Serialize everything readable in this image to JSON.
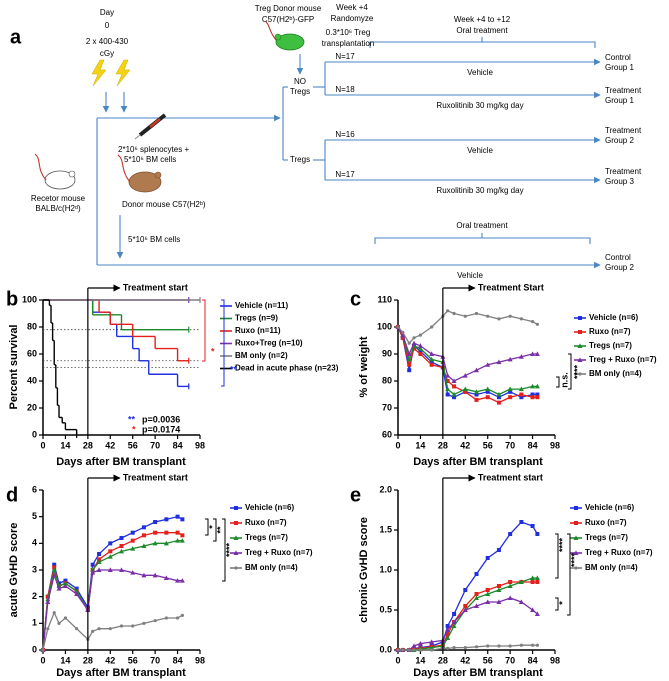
{
  "diagram": {
    "panel": "a",
    "texts": [
      "Day",
      "0",
      "2 x 400-430",
      "cGy",
      "Treg Donor mouse",
      "C57(H2ᵇ)-GFP",
      "Week +4",
      "Randomyze",
      "0.3*10⁶ Treg",
      "transplantation",
      "Week +4 to +12",
      "Oral treatment",
      "NO",
      "Tregs",
      "N=17",
      "Vehicle",
      "Control",
      "Group 1",
      "N=18",
      "Ruxolitinib 30 mg/kg day",
      "Treatment",
      "Group 1",
      "Tregs",
      "N=16",
      "Vehicle",
      "Treatment",
      "Group 2",
      "N=17",
      "Ruxolitinib 30 mg/kg day",
      "Treatment",
      "Group 3",
      "2*10⁶ splenocytes +",
      "5*10⁶ BM cells",
      "Recetor mouse",
      "BALB/c(H2ᵈ)",
      "Donor mouse C57(H2ᵇ)",
      "5*10⁶ BM cells",
      "Oral treatment",
      "Control",
      "Group 2",
      "Vehicle"
    ]
  },
  "chart_data": [
    {
      "type": "line",
      "step": true,
      "panel": "b",
      "ylabel": "Percent survival",
      "xlabel": "Days after BM transplant",
      "xlim": [
        0,
        98
      ],
      "xticks": [
        0,
        14,
        28,
        42,
        56,
        70,
        84,
        98
      ],
      "ylim": [
        0,
        100
      ],
      "yticks": [
        0,
        20,
        40,
        60,
        80,
        100
      ],
      "hlines": [
        78,
        55,
        50
      ],
      "treatment_start": {
        "x": 28,
        "label": "Treatment start"
      },
      "series": [
        {
          "name": "Vehicle (n=11)",
          "color": "#1f2fe0",
          "x": [
            0,
            31,
            42,
            46,
            56,
            60,
            66,
            84,
            91
          ],
          "values": [
            100,
            91,
            82,
            73,
            64,
            55,
            45,
            36,
            36
          ]
        },
        {
          "name": "Tregs (n=9)",
          "color": "#1c8a2a",
          "x": [
            0,
            31,
            49,
            91
          ],
          "values": [
            100,
            89,
            78,
            78
          ]
        },
        {
          "name": "Ruxo (n=11)",
          "color": "#e3201c",
          "x": [
            0,
            35,
            42,
            56,
            70,
            84,
            91
          ],
          "values": [
            100,
            91,
            82,
            73,
            64,
            55,
            55
          ]
        },
        {
          "name": "Ruxo+Treg (n=10)",
          "color": "#7a2fa8",
          "x": [
            0,
            91
          ],
          "values": [
            100,
            100
          ]
        },
        {
          "name": "BM only (n=2)",
          "color": "#7f7f7f",
          "x": [
            0,
            98
          ],
          "values": [
            100,
            100
          ]
        },
        {
          "name": "Dead in acute phase (n=23)",
          "color": "#000000",
          "x": [
            0,
            4,
            5,
            6,
            7,
            8,
            9,
            10,
            12,
            14,
            21
          ],
          "values": [
            100,
            96,
            83,
            70,
            52,
            35,
            22,
            13,
            9,
            4,
            0
          ]
        }
      ],
      "annotations": [
        {
          "text": "*",
          "color": "#e3201c"
        },
        {
          "text": "**",
          "color": "#1f2fe0"
        },
        {
          "text": "**",
          "color": "#1f2fe0"
        },
        {
          "text": "p=0.0036"
        },
        {
          "text": "*",
          "color": "#e3201c"
        },
        {
          "text": "p=0.0174"
        }
      ]
    },
    {
      "type": "line",
      "panel": "c",
      "ylabel": "% of weight",
      "xlabel": "Days after BM transplant",
      "xlim": [
        0,
        98
      ],
      "xticks": [
        0,
        14,
        28,
        42,
        56,
        70,
        84,
        98
      ],
      "ylim": [
        60,
        110
      ],
      "yticks": [
        60,
        70,
        80,
        90,
        100,
        110
      ],
      "x": [
        0,
        3,
        7,
        10,
        14,
        21,
        28,
        31,
        35,
        42,
        49,
        56,
        63,
        70,
        77,
        84,
        87
      ],
      "treatment_start": {
        "x": 28,
        "label": "Treatment Start"
      },
      "series": [
        {
          "name": "Vehicle (n=6)",
          "color": "#1f2fe0",
          "marker": "square",
          "values": [
            100,
            96,
            84,
            93,
            91,
            87,
            85,
            75,
            74,
            76,
            75,
            76,
            74,
            76,
            74,
            75,
            75
          ]
        },
        {
          "name": "Ruxo (n=7)",
          "color": "#e3201c",
          "marker": "square",
          "values": [
            100,
            96,
            86,
            92,
            90,
            86,
            85,
            80,
            78,
            76,
            73,
            74,
            72,
            74,
            75,
            74,
            74
          ]
        },
        {
          "name": "Tregs (n=7)",
          "color": "#1c8a2a",
          "marker": "triangle",
          "values": [
            100,
            97,
            88,
            93,
            92,
            88,
            87,
            77,
            75,
            77,
            76,
            77,
            75,
            77,
            77,
            78,
            78
          ]
        },
        {
          "name": "Treg + Ruxo (n=7)",
          "color": "#7a2fa8",
          "marker": "triangle",
          "values": [
            100,
            97,
            90,
            94,
            93,
            90,
            89,
            82,
            80,
            82,
            84,
            86,
            87,
            88,
            89,
            90,
            90
          ]
        },
        {
          "name": "BM only (n=4)",
          "color": "#7f7f7f",
          "marker": "circle",
          "values": [
            100,
            98,
            94,
            96,
            97,
            100,
            104,
            106,
            105,
            104,
            105,
            104,
            103,
            104,
            103,
            102,
            101
          ]
        }
      ],
      "annotations": [
        {
          "text": "n.s."
        },
        {
          "text": "****"
        }
      ]
    },
    {
      "type": "line",
      "panel": "d",
      "ylabel": "acute GvHD score",
      "xlabel": "Days after BM transplant",
      "xlim": [
        0,
        98
      ],
      "xticks": [
        0,
        14,
        28,
        42,
        56,
        70,
        84,
        98
      ],
      "ylim": [
        0,
        6
      ],
      "yticks": [
        0,
        1,
        2,
        3,
        4,
        5,
        6
      ],
      "x": [
        0,
        3,
        7,
        10,
        14,
        21,
        28,
        31,
        35,
        42,
        49,
        56,
        63,
        70,
        77,
        84,
        87
      ],
      "treatment_start": {
        "x": 28,
        "label": "Treatment start"
      },
      "series": [
        {
          "name": "Vehicle (n=6)",
          "color": "#1f2fe0",
          "marker": "square",
          "values": [
            0,
            2,
            3.2,
            2.5,
            2.6,
            2.3,
            1.6,
            3.2,
            3.6,
            4.0,
            4.2,
            4.4,
            4.6,
            4.8,
            4.9,
            5.0,
            4.9
          ]
        },
        {
          "name": "Ruxo (n=7)",
          "color": "#e3201c",
          "marker": "square",
          "values": [
            0,
            2,
            3.1,
            2.4,
            2.5,
            2.2,
            1.5,
            3.0,
            3.4,
            3.7,
            3.9,
            4.1,
            4.3,
            4.4,
            4.4,
            4.4,
            4.3
          ]
        },
        {
          "name": "Tregs (n=7)",
          "color": "#1c8a2a",
          "marker": "triangle",
          "values": [
            0,
            1.9,
            3.0,
            2.4,
            2.5,
            2.2,
            1.5,
            3.0,
            3.3,
            3.5,
            3.7,
            3.8,
            3.9,
            4.0,
            4.0,
            4.1,
            4.1
          ]
        },
        {
          "name": "Treg + Ruxo (n=7)",
          "color": "#7a2fa8",
          "marker": "triangle",
          "values": [
            0,
            1.8,
            2.8,
            2.3,
            2.4,
            2.1,
            1.5,
            2.9,
            3.0,
            3.0,
            3.0,
            2.9,
            2.8,
            2.8,
            2.7,
            2.6,
            2.6
          ]
        },
        {
          "name": "BM only (n=4)",
          "color": "#7f7f7f",
          "marker": "circle",
          "values": [
            0,
            0.8,
            1.4,
            1.0,
            1.2,
            0.8,
            0.4,
            0.7,
            0.8,
            0.8,
            0.9,
            0.9,
            1.0,
            1.1,
            1.2,
            1.2,
            1.3
          ]
        }
      ],
      "annotations": [
        {
          "text": "*"
        },
        {
          "text": "**"
        },
        {
          "text": "****"
        }
      ]
    },
    {
      "type": "line",
      "panel": "e",
      "ylabel": "chronic GvHD score",
      "xlabel": "Days after BM transplant",
      "xlim": [
        0,
        98
      ],
      "xticks": [
        0,
        14,
        28,
        42,
        56,
        70,
        84,
        98
      ],
      "ylim": [
        0,
        2
      ],
      "yticks": [
        {
          "value": 0,
          "label": "0.0"
        },
        0.5,
        {
          "value": 1,
          "label": "1.0"
        },
        1.5,
        {
          "value": 2,
          "label": "2.0"
        }
      ],
      "x": [
        0,
        3,
        7,
        10,
        14,
        21,
        28,
        31,
        35,
        42,
        49,
        56,
        63,
        70,
        77,
        84,
        87
      ],
      "treatment_start": {
        "x": 28,
        "label": "Treatment start"
      },
      "series": [
        {
          "name": "Vehicle (n=6)",
          "color": "#1f2fe0",
          "marker": "square",
          "values": [
            0,
            0,
            0,
            0.02,
            0.03,
            0.05,
            0.1,
            0.3,
            0.45,
            0.75,
            0.95,
            1.15,
            1.25,
            1.45,
            1.6,
            1.55,
            1.45
          ]
        },
        {
          "name": "Ruxo (n=7)",
          "color": "#e3201c",
          "marker": "square",
          "values": [
            0,
            0,
            0,
            0.01,
            0.02,
            0.04,
            0.06,
            0.2,
            0.35,
            0.55,
            0.7,
            0.75,
            0.8,
            0.85,
            0.85,
            0.85,
            0.85
          ]
        },
        {
          "name": "Tregs (n=7)",
          "color": "#1c8a2a",
          "marker": "triangle",
          "values": [
            0,
            0,
            0,
            0,
            0.01,
            0.03,
            0.05,
            0.15,
            0.3,
            0.5,
            0.65,
            0.7,
            0.75,
            0.8,
            0.85,
            0.9,
            0.9
          ]
        },
        {
          "name": "Treg + Ruxo (n=7)",
          "color": "#7a2fa8",
          "marker": "triangle",
          "values": [
            0,
            0,
            0,
            0.05,
            0.08,
            0.1,
            0.12,
            0.25,
            0.35,
            0.5,
            0.55,
            0.6,
            0.6,
            0.65,
            0.6,
            0.5,
            0.45
          ]
        },
        {
          "name": "BM only (n=4)",
          "color": "#7f7f7f",
          "marker": "circle",
          "values": [
            0,
            0,
            0,
            0,
            0,
            0,
            0.02,
            0.02,
            0.03,
            0.03,
            0.04,
            0.05,
            0.05,
            0.05,
            0.06,
            0.06,
            0.06
          ]
        }
      ],
      "annotations": [
        {
          "text": "****"
        },
        {
          "text": "****"
        },
        {
          "text": "*"
        }
      ]
    }
  ]
}
